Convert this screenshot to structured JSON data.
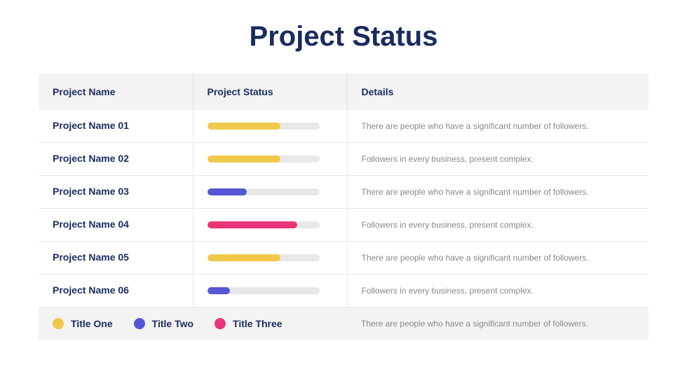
{
  "title": "Project Status",
  "colors": {
    "yellow": "#f0c94a",
    "blue": "#5556d4",
    "pink": "#e93578",
    "track": "#e8e8e8",
    "header_bg": "#f3f3f3",
    "text_dark": "#1a2b5e",
    "text_light": "#888888"
  },
  "columns": {
    "name": "Project Name",
    "status": "Project Status",
    "details": "Details"
  },
  "rows": [
    {
      "name": "Project Name 01",
      "progress": 65,
      "color": "#f0c94a",
      "details": "There are people who have a significant number of followers."
    },
    {
      "name": "Project Name 02",
      "progress": 65,
      "color": "#f0c94a",
      "details": "Followers in every business, present complex."
    },
    {
      "name": "Project Name 03",
      "progress": 35,
      "color": "#5556d4",
      "details": "There are people who have a significant number of followers."
    },
    {
      "name": "Project Name 04",
      "progress": 80,
      "color": "#e93578",
      "details": "Followers in every business, present complex."
    },
    {
      "name": "Project Name 05",
      "progress": 65,
      "color": "#f0c94a",
      "details": "There are people who have a significant number of followers."
    },
    {
      "name": "Project Name 06",
      "progress": 20,
      "color": "#5556d4",
      "details": "Followers in every business, present complex."
    }
  ],
  "legend": [
    {
      "label": "Title One",
      "color": "#f0c94a"
    },
    {
      "label": "Title Two",
      "color": "#5556d4"
    },
    {
      "label": "Title Three",
      "color": "#e93578"
    }
  ],
  "footer_details": "There are people who have a significant number of followers."
}
